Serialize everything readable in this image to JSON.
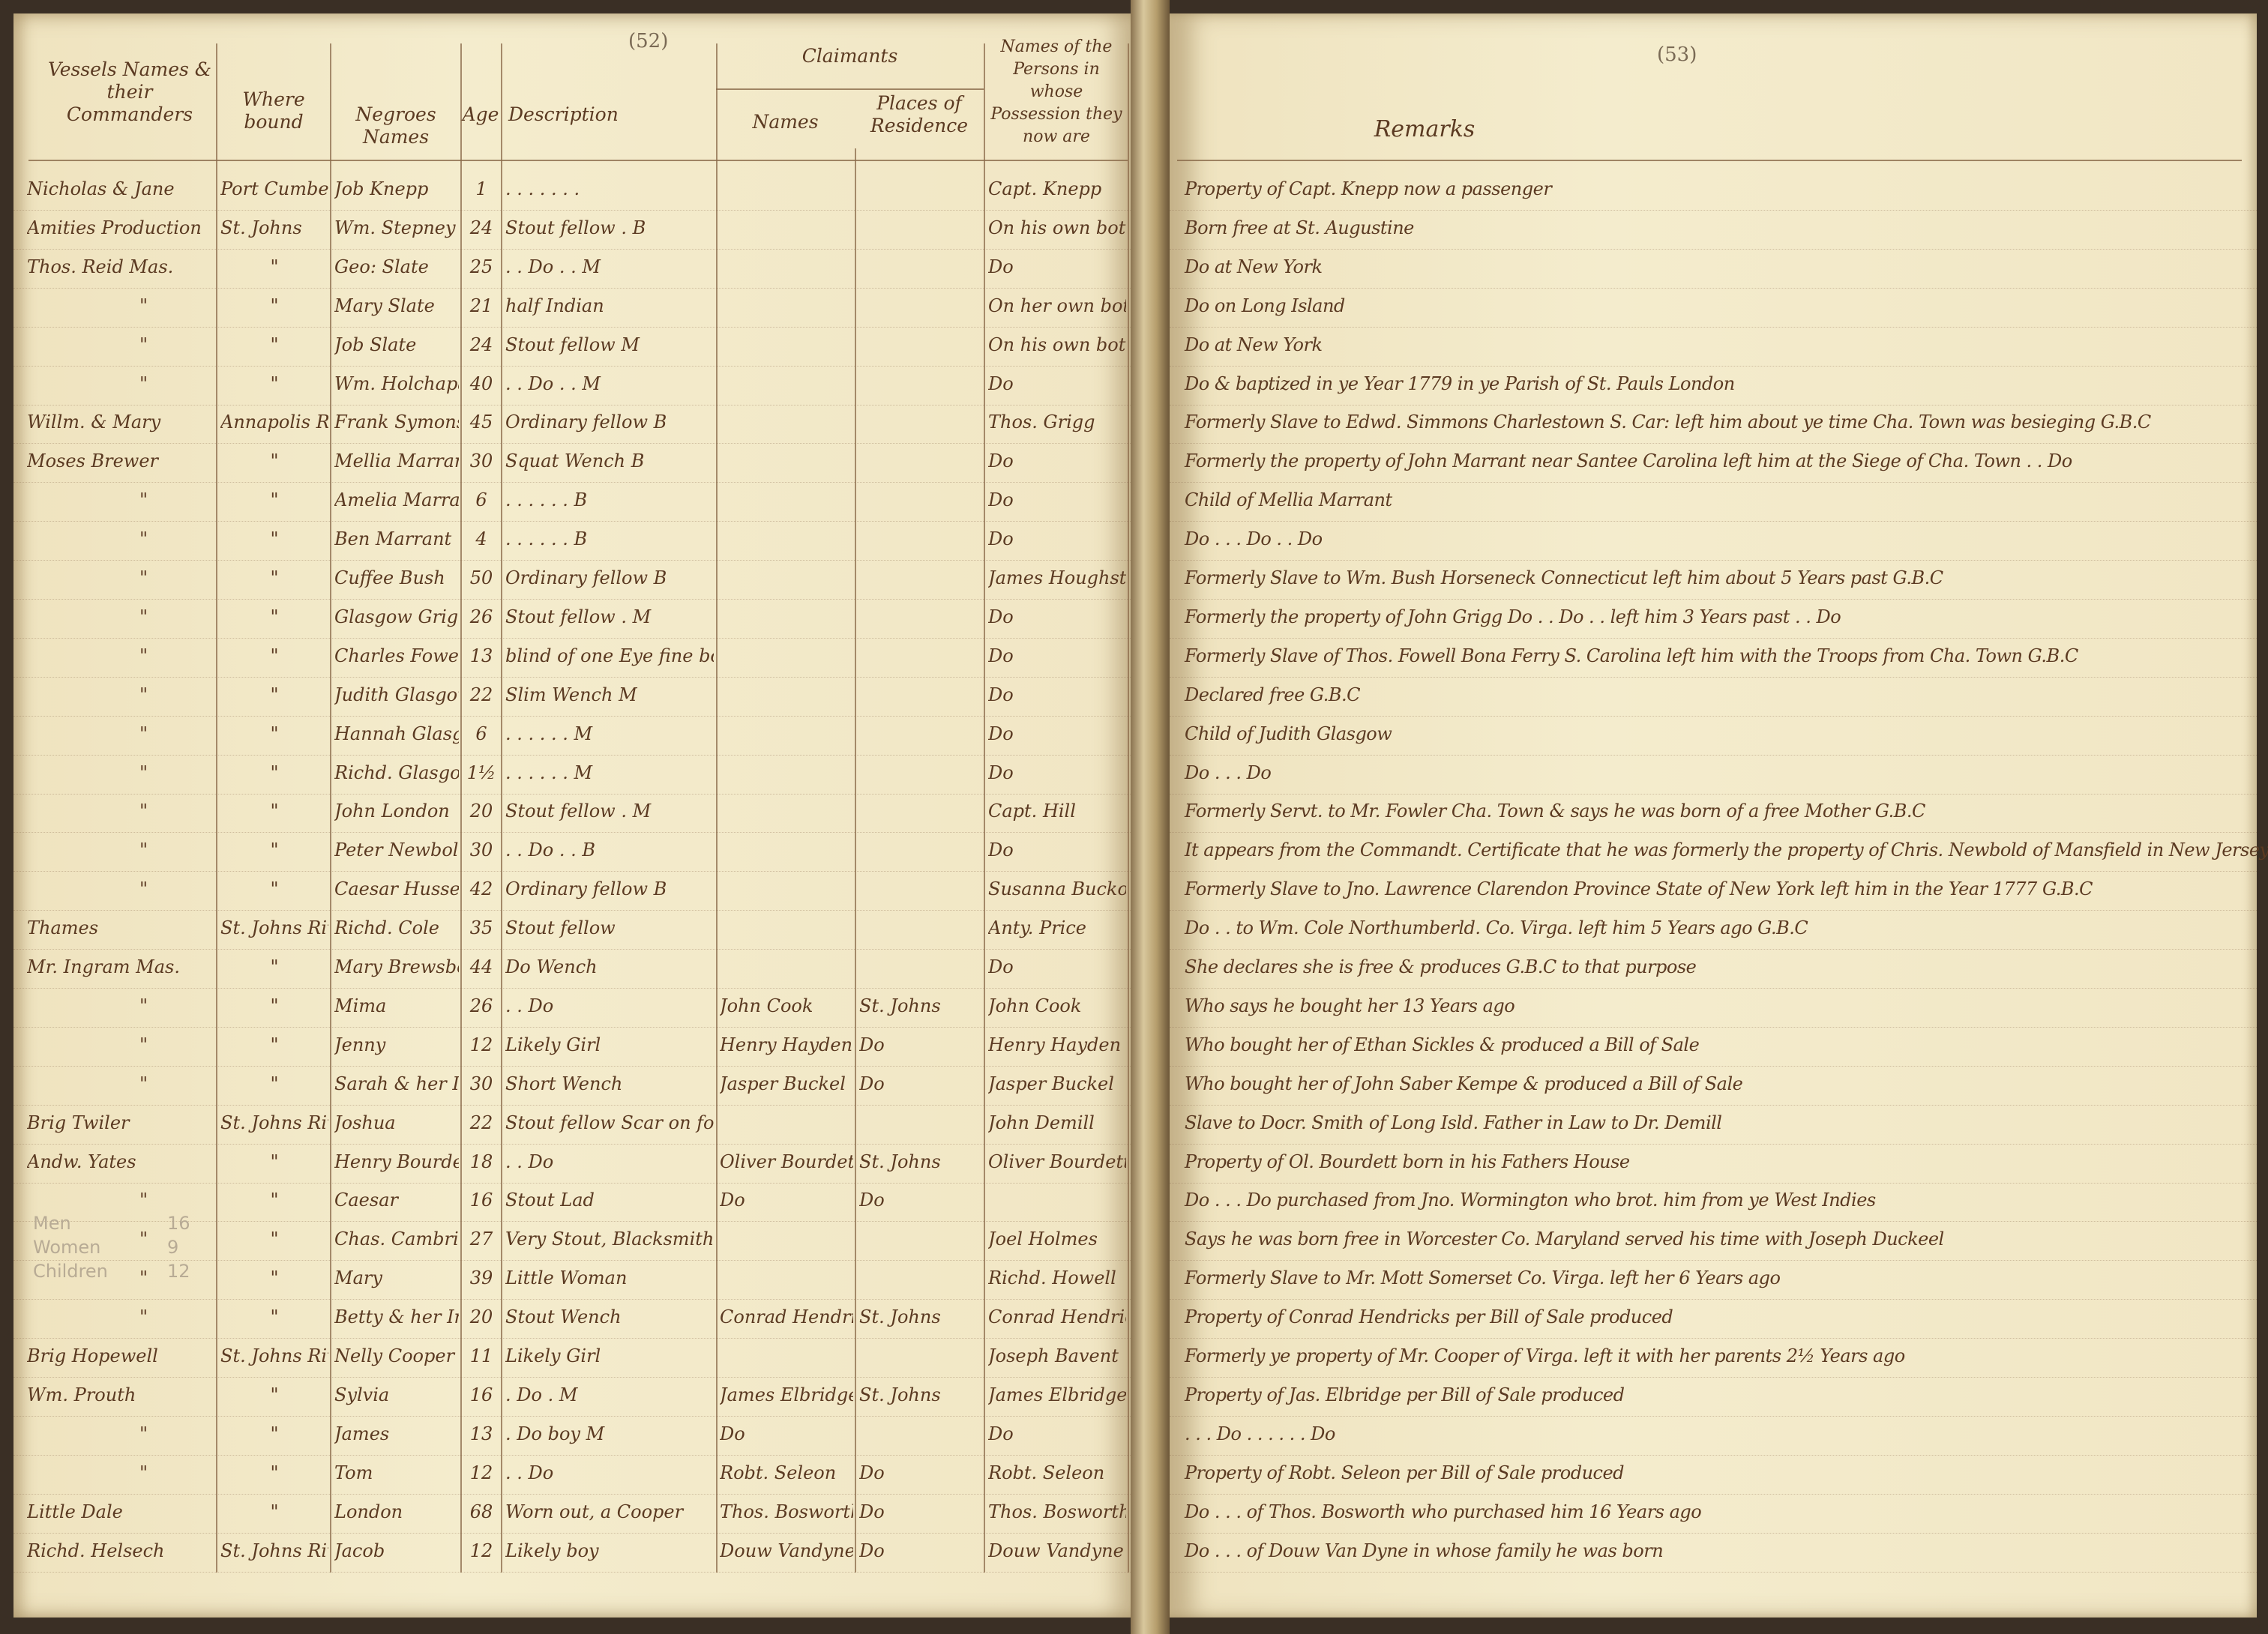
{
  "left_page": {
    "page_number": "(52)",
    "headers": {
      "vessel": "Vessels Names & their Commanders",
      "whither": "Where bound",
      "negro_names": "Negroes Names",
      "age": "Age",
      "description": "Description",
      "claimants": "Claimants",
      "claimant_names": "Names",
      "places": "Places of Residence",
      "possession": "Names of the Persons in whose Possession they now are"
    },
    "pencil_tally": [
      {
        "label": "Men",
        "count": "16"
      },
      {
        "label": "Women",
        "count": "9"
      },
      {
        "label": "Children",
        "count": "12"
      }
    ]
  },
  "right_page": {
    "page_number": "(53)",
    "header": "Remarks"
  },
  "rows": [
    {
      "vessel": "Nicholas & Jane",
      "whither": "Port Cumberland",
      "name": "Job Knepp",
      "age": "1",
      "desc": ". . . . . . .",
      "claimant": "",
      "place": "",
      "possession": "Capt. Knepp",
      "remark": "Property of Capt. Knepp now a passenger"
    },
    {
      "vessel": "Amities Production",
      "whither": "St. Johns",
      "name": "Wm. Stepney",
      "age": "24",
      "desc": "Stout fellow . B",
      "claimant": "",
      "place": "",
      "possession": "On his own bottom",
      "remark": "Born free at St. Augustine"
    },
    {
      "vessel": "Thos. Reid Mas.",
      "whither": "\"",
      "name": "Geo: Slate",
      "age": "25",
      "desc": ". . Do . . M",
      "claimant": "",
      "place": "",
      "possession": "Do",
      "remark": "Do at New York"
    },
    {
      "vessel": "\"",
      "whither": "\"",
      "name": "Mary Slate",
      "age": "21",
      "desc": "half Indian",
      "claimant": "",
      "place": "",
      "possession": "On her own bottom",
      "remark": "Do on Long Island"
    },
    {
      "vessel": "\"",
      "whither": "\"",
      "name": "Job Slate",
      "age": "24",
      "desc": "Stout fellow M",
      "claimant": "",
      "place": "",
      "possession": "On his own bottom",
      "remark": "Do at New York"
    },
    {
      "vessel": "\"",
      "whither": "\"",
      "name": "Wm. Holchapan",
      "age": "40",
      "desc": ". . Do . . M",
      "claimant": "",
      "place": "",
      "possession": "Do",
      "remark": "Do & baptized in ye Year 1779 in ye Parish of St. Pauls London"
    },
    {
      "vessel": "Willm. & Mary",
      "whither": "Annapolis Roy.",
      "name": "Frank Symons",
      "age": "45",
      "desc": "Ordinary fellow B",
      "claimant": "",
      "place": "",
      "possession": "Thos. Grigg",
      "remark": "Formerly Slave to Edwd. Simmons Charlestown S. Car: left him about ye time Cha. Town was besieging G.B.C"
    },
    {
      "vessel": "Moses Brewer",
      "whither": "\"",
      "name": "Mellia Marrant",
      "age": "30",
      "desc": "Squat Wench B",
      "claimant": "",
      "place": "",
      "possession": "Do",
      "remark": "Formerly the property of John Marrant near Santee Carolina left him at the Siege of Cha. Town . . Do"
    },
    {
      "vessel": "\"",
      "whither": "\"",
      "name": "Amelia Marrant",
      "age": "6",
      "desc": ". . . . . . B",
      "claimant": "",
      "place": "",
      "possession": "Do",
      "remark": "Child of Mellia Marrant"
    },
    {
      "vessel": "\"",
      "whither": "\"",
      "name": "Ben Marrant",
      "age": "4",
      "desc": ". . . . . . B",
      "claimant": "",
      "place": "",
      "possession": "Do",
      "remark": "Do . . . Do . . Do"
    },
    {
      "vessel": "\"",
      "whither": "\"",
      "name": "Cuffee Bush",
      "age": "50",
      "desc": "Ordinary fellow B",
      "claimant": "",
      "place": "",
      "possession": "James Houghston",
      "remark": "Formerly Slave to Wm. Bush Horseneck Connecticut left him about 5 Years past G.B.C"
    },
    {
      "vessel": "\"",
      "whither": "\"",
      "name": "Glasgow Grigg",
      "age": "26",
      "desc": "Stout fellow . M",
      "claimant": "",
      "place": "",
      "possession": "Do",
      "remark": "Formerly the property of John Grigg Do . . Do . . left him 3 Years past . . Do"
    },
    {
      "vessel": "\"",
      "whither": "\"",
      "name": "Charles Fowell",
      "age": "13",
      "desc": "blind of one Eye fine boy",
      "claimant": "",
      "place": "",
      "possession": "Do",
      "remark": "Formerly Slave of Thos. Fowell Bona Ferry S. Carolina left him with the Troops from Cha. Town G.B.C"
    },
    {
      "vessel": "\"",
      "whither": "\"",
      "name": "Judith Glasgow",
      "age": "22",
      "desc": "Slim Wench M",
      "claimant": "",
      "place": "",
      "possession": "Do",
      "remark": "Declared free G.B.C"
    },
    {
      "vessel": "\"",
      "whither": "\"",
      "name": "Hannah Glasgow",
      "age": "6",
      "desc": ". . . . . . M",
      "claimant": "",
      "place": "",
      "possession": "Do",
      "remark": "Child of Judith Glasgow"
    },
    {
      "vessel": "\"",
      "whither": "\"",
      "name": "Richd. Glasgow",
      "age": "1½",
      "desc": ". . . . . . M",
      "claimant": "",
      "place": "",
      "possession": "Do",
      "remark": "Do . . . Do"
    },
    {
      "vessel": "\"",
      "whither": "\"",
      "name": "John London",
      "age": "20",
      "desc": "Stout fellow . M",
      "claimant": "",
      "place": "",
      "possession": "Capt. Hill",
      "remark": "Formerly Servt. to Mr. Fowler Cha. Town & says he was born of a free Mother G.B.C"
    },
    {
      "vessel": "\"",
      "whither": "\"",
      "name": "Peter Newbold",
      "age": "30",
      "desc": ". . Do . . B",
      "claimant": "",
      "place": "",
      "possession": "Do",
      "remark": "It appears from the Commandt. Certificate that he was formerly the property of Chris. Newbold of Mansfield in New Jersey G.B.C"
    },
    {
      "vessel": "\"",
      "whither": "\"",
      "name": "Caesar Hussen",
      "age": "42",
      "desc": "Ordinary fellow B",
      "claimant": "",
      "place": "",
      "possession": "Susanna Buckock",
      "remark": "Formerly Slave to Jno. Lawrence Clarendon Province State of New York left him in the Year 1777 G.B.C"
    },
    {
      "vessel": "Thames",
      "whither": "St. Johns River",
      "name": "Richd. Cole",
      "age": "35",
      "desc": "Stout fellow",
      "claimant": "",
      "place": "",
      "possession": "Anty. Price",
      "remark": "Do . . to Wm. Cole Northumberld. Co. Virga. left him 5 Years ago G.B.C"
    },
    {
      "vessel": "Mr. Ingram Mas.",
      "whither": "\"",
      "name": "Mary Brewsboy",
      "age": "44",
      "desc": "Do Wench",
      "claimant": "",
      "place": "",
      "possession": "Do",
      "remark": "She declares she is free & produces G.B.C to that purpose"
    },
    {
      "vessel": "\"",
      "whither": "\"",
      "name": "Mima",
      "age": "26",
      "desc": ". . Do",
      "claimant": "John Cook",
      "place": "St. Johns",
      "possession": "John Cook",
      "remark": "Who says he bought her 13 Years ago"
    },
    {
      "vessel": "\"",
      "whither": "\"",
      "name": "Jenny",
      "age": "12",
      "desc": "Likely Girl",
      "claimant": "Henry Hayden",
      "place": "Do",
      "possession": "Henry Hayden",
      "remark": "Who bought her of Ethan Sickles & produced a Bill of Sale"
    },
    {
      "vessel": "\"",
      "whither": "\"",
      "name": "Sarah & her Infant",
      "age": "30",
      "desc": "Short Wench",
      "claimant": "Jasper Buckel",
      "place": "Do",
      "possession": "Jasper Buckel",
      "remark": "Who bought her of John Saber Kempe & produced a Bill of Sale"
    },
    {
      "vessel": "Brig Twiler",
      "whither": "St. Johns River",
      "name": "Joshua",
      "age": "22",
      "desc": "Stout fellow Scar on forehd.",
      "claimant": "",
      "place": "",
      "possession": "John Demill",
      "remark": "Slave to Docr. Smith of Long Isld. Father in Law to Dr. Demill"
    },
    {
      "vessel": "Andw. Yates",
      "whither": "\"",
      "name": "Henry Bourdett",
      "age": "18",
      "desc": ". . Do",
      "claimant": "Oliver Bourdett",
      "place": "St. Johns",
      "possession": "Oliver Bourdett",
      "remark": "Property of Ol. Bourdett born in his Fathers House"
    },
    {
      "vessel": "\"",
      "whither": "\"",
      "name": "Caesar",
      "age": "16",
      "desc": "Stout Lad",
      "claimant": "Do",
      "place": "Do",
      "possession": "",
      "remark": "Do . . . Do purchased from Jno. Wormington who brot. him from ye West Indies"
    },
    {
      "vessel": "\"",
      "whither": "\"",
      "name": "Chas. Cambridge",
      "age": "27",
      "desc": "Very Stout, Blacksmith M",
      "claimant": "",
      "place": "",
      "possession": "Joel Holmes",
      "remark": "Says he was born free in Worcester Co. Maryland served his time with Joseph Duckeel"
    },
    {
      "vessel": "\"",
      "whither": "\"",
      "name": "Mary",
      "age": "39",
      "desc": "Little Woman",
      "claimant": "",
      "place": "",
      "possession": "Richd. Howell",
      "remark": "Formerly Slave to Mr. Mott Somerset Co. Virga. left her 6 Years ago"
    },
    {
      "vessel": "\"",
      "whither": "\"",
      "name": "Betty & her Infant",
      "age": "20",
      "desc": "Stout Wench",
      "claimant": "Conrad Hendricks",
      "place": "St. Johns",
      "possession": "Conrad Hendricks",
      "remark": "Property of Conrad Hendricks per Bill of Sale produced"
    },
    {
      "vessel": "Brig Hopewell",
      "whither": "St. Johns River",
      "name": "Nelly Cooper",
      "age": "11",
      "desc": "Likely Girl",
      "claimant": "",
      "place": "",
      "possession": "Joseph Bavent",
      "remark": "Formerly ye property of Mr. Cooper of Virga. left it with her parents 2½ Years ago"
    },
    {
      "vessel": "Wm. Prouth",
      "whither": "\"",
      "name": "Sylvia",
      "age": "16",
      "desc": ". Do . M",
      "claimant": "James Elbridge",
      "place": "St. Johns",
      "possession": "James Elbridge",
      "remark": "Property of Jas. Elbridge per Bill of Sale produced"
    },
    {
      "vessel": "\"",
      "whither": "\"",
      "name": "James",
      "age": "13",
      "desc": ". Do boy M",
      "claimant": "Do",
      "place": "",
      "possession": "Do",
      "remark": ". . . Do . . . . . . Do"
    },
    {
      "vessel": "\"",
      "whither": "\"",
      "name": "Tom",
      "age": "12",
      "desc": ". . Do",
      "claimant": "Robt. Seleon",
      "place": "Do",
      "possession": "Robt. Seleon",
      "remark": "Property of Robt. Seleon per Bill of Sale produced"
    },
    {
      "vessel": "Little Dale",
      "whither": "\"",
      "name": "London",
      "age": "68",
      "desc": "Worn out, a Cooper",
      "claimant": "Thos. Bosworth",
      "place": "Do",
      "possession": "Thos. Bosworth",
      "remark": "Do . . . of Thos. Bosworth who purchased him 16 Years ago"
    },
    {
      "vessel": "Richd. Helsech",
      "whither": "St. Johns River",
      "name": "Jacob",
      "age": "12",
      "desc": "Likely boy",
      "claimant": "Douw Vandyne",
      "place": "Do",
      "possession": "Douw Vandyne",
      "remark": "Do . . . of Douw Van Dyne in whose family he was born"
    }
  ]
}
